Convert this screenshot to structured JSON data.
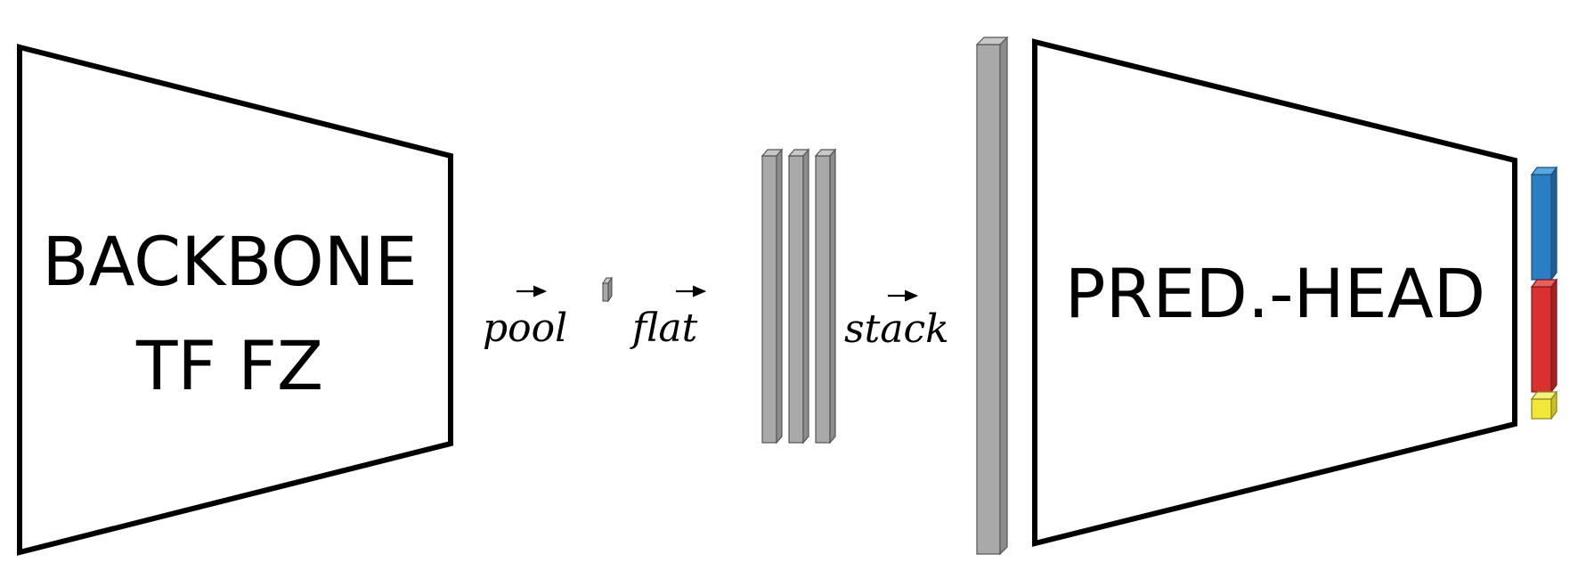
{
  "backbone": {
    "line1": "BACKBONE",
    "line2": "TF FZ"
  },
  "head": {
    "label": "PRED.-HEAD"
  },
  "operations": {
    "pool": "pool",
    "flat": "flat",
    "stack": "stack"
  },
  "output_colors": {
    "top": "#2a7fc4",
    "middle": "#d93030",
    "bottom": "#f2e83a"
  },
  "bar_color": "#a9a9a9"
}
